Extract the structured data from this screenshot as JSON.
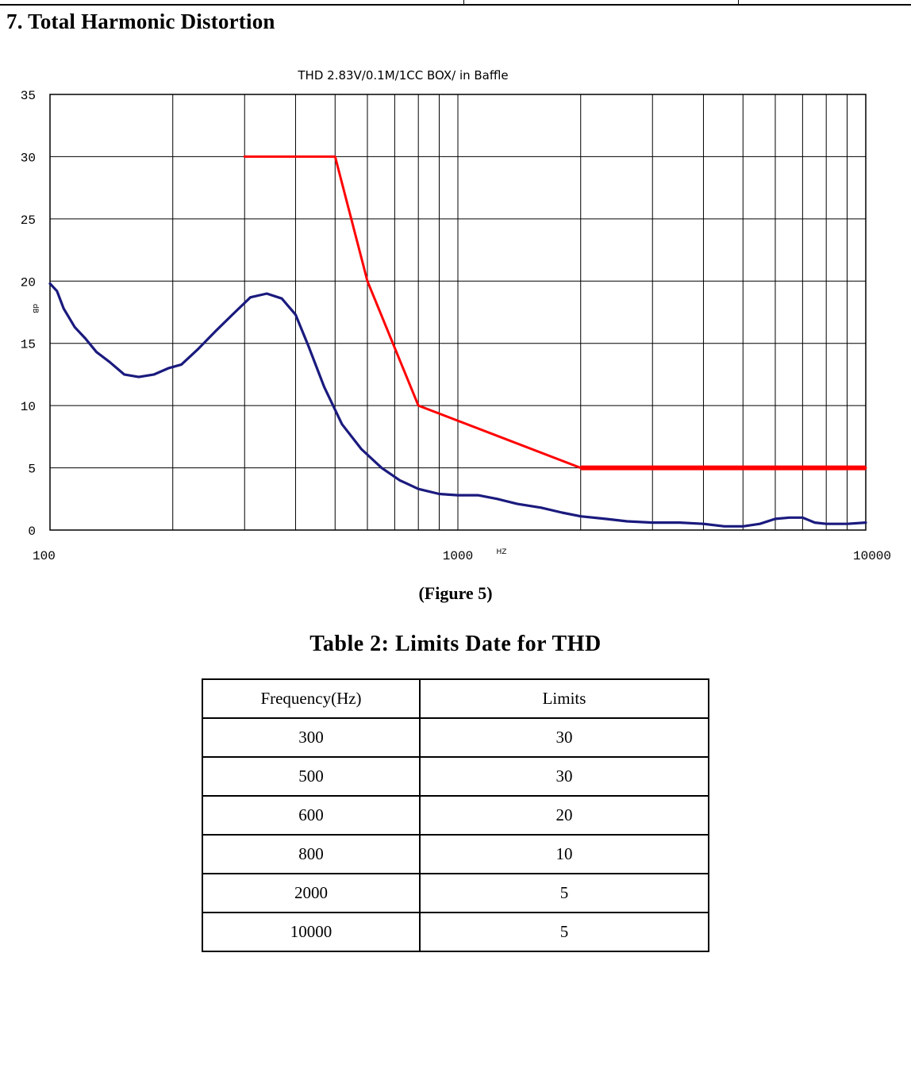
{
  "section_title": "7. Total Harmonic Distortion",
  "figure_caption": "(Figure 5)",
  "table": {
    "title": "Table 2: Limits Date for THD",
    "headers": [
      "Frequency(Hz)",
      "Limits"
    ],
    "rows": [
      [
        "300",
        "30"
      ],
      [
        "500",
        "30"
      ],
      [
        "600",
        "20"
      ],
      [
        "800",
        "10"
      ],
      [
        "2000",
        "5"
      ],
      [
        "10000",
        "5"
      ]
    ]
  },
  "chart_data": {
    "type": "line",
    "title": "THD 2.83V/0.1M/1CC BOX/ in  Baffle",
    "xlabel": "HZ",
    "ylabel": "dB",
    "x_scale": "log",
    "xlim": [
      100,
      10000
    ],
    "ylim": [
      0,
      35
    ],
    "x_ticks": [
      "100",
      "1000",
      "10000"
    ],
    "y_ticks": [
      "0",
      "5",
      "10",
      "15",
      "20",
      "25",
      "30",
      "35"
    ],
    "grid": true,
    "series": [
      {
        "color": "#1a1a7e",
        "x": [
          100,
          104,
          108,
          115,
          122,
          130,
          140,
          152,
          165,
          180,
          195,
          210,
          230,
          255,
          280,
          310,
          340,
          370,
          400,
          430,
          470,
          520,
          580,
          650,
          720,
          800,
          900,
          1000,
          1120,
          1250,
          1400,
          1600,
          1800,
          2000,
          2300,
          2600,
          3000,
          3500,
          4000,
          4500,
          5000,
          5500,
          6000,
          6500,
          7000,
          7500,
          8000,
          9000,
          10000
        ],
        "y": [
          19.8,
          19.2,
          17.8,
          16.3,
          15.4,
          14.3,
          13.5,
          12.5,
          12.3,
          12.5,
          13.0,
          13.3,
          14.5,
          16.0,
          17.3,
          18.7,
          19.0,
          18.6,
          17.3,
          14.8,
          11.5,
          8.5,
          6.5,
          5.0,
          4.0,
          3.3,
          2.9,
          2.8,
          2.8,
          2.5,
          2.1,
          1.8,
          1.4,
          1.1,
          0.9,
          0.7,
          0.6,
          0.6,
          0.5,
          0.3,
          0.3,
          0.5,
          0.9,
          1.0,
          1.0,
          0.6,
          0.5,
          0.5,
          0.6
        ]
      },
      {
        "color": "#ff0000",
        "x": [
          300,
          500,
          600,
          800,
          2000,
          10000
        ],
        "y": [
          30,
          30,
          20,
          10,
          5,
          5
        ]
      }
    ]
  }
}
